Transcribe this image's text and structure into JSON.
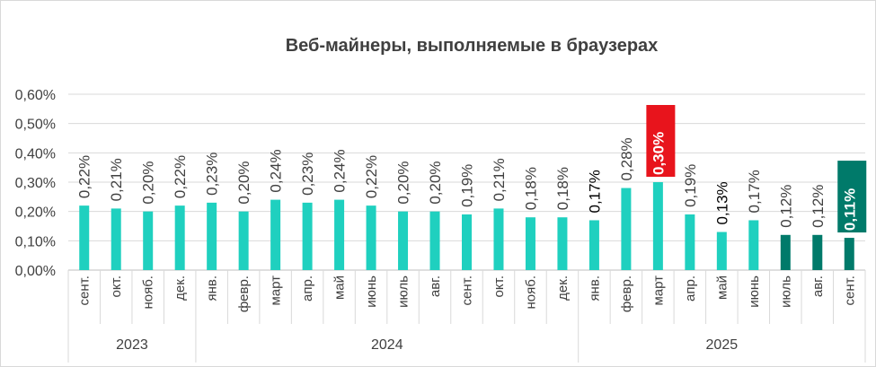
{
  "chart_data": {
    "type": "bar",
    "title": "Веб-майнеры, выполняемые в браузерах",
    "xlabel": "",
    "ylabel": "",
    "ylim": [
      0,
      0.6
    ],
    "yticks": [
      "0,00%",
      "0,10%",
      "0,20%",
      "0,30%",
      "0,40%",
      "0,50%",
      "0,60%"
    ],
    "grid": true,
    "legend": "none",
    "years": [
      {
        "label": "2023",
        "count": 4
      },
      {
        "label": "2024",
        "count": 12
      },
      {
        "label": "2025",
        "count": 9
      }
    ],
    "categories": [
      "сент.",
      "окт.",
      "нояб.",
      "дек.",
      "янв.",
      "февр.",
      "март",
      "апр.",
      "май",
      "июнь",
      "июль",
      "авг.",
      "сент.",
      "окт.",
      "нояб.",
      "дек.",
      "янв.",
      "февр.",
      "март",
      "апр.",
      "май",
      "июнь",
      "июль",
      "авг.",
      "сент."
    ],
    "values": [
      0.22,
      0.21,
      0.2,
      0.22,
      0.23,
      0.2,
      0.24,
      0.23,
      0.24,
      0.22,
      0.2,
      0.2,
      0.19,
      0.21,
      0.18,
      0.18,
      0.17,
      0.28,
      0.3,
      0.19,
      0.13,
      0.17,
      0.12,
      0.12,
      0.11
    ],
    "labels": [
      "0,22%",
      "0,21%",
      "0,20%",
      "0,22%",
      "0,23%",
      "0,20%",
      "0,24%",
      "0,23%",
      "0,24%",
      "0,22%",
      "0,20%",
      "0,20%",
      "0,19%",
      "0,21%",
      "0,18%",
      "0,18%",
      "0,17%",
      "0,28%",
      "0,30%",
      "0,19%",
      "0,13%",
      "0,17%",
      "0,12%",
      "0,12%",
      "0,11%"
    ],
    "bar_colors": [
      "#1fd0bf",
      "#1fd0bf",
      "#1fd0bf",
      "#1fd0bf",
      "#1fd0bf",
      "#1fd0bf",
      "#1fd0bf",
      "#1fd0bf",
      "#1fd0bf",
      "#1fd0bf",
      "#1fd0bf",
      "#1fd0bf",
      "#1fd0bf",
      "#1fd0bf",
      "#1fd0bf",
      "#1fd0bf",
      "#1fd0bf",
      "#1fd0bf",
      "#1fd0bf",
      "#1fd0bf",
      "#1fd0bf",
      "#1fd0bf",
      "#007a6a",
      "#007a6a",
      "#007a6a"
    ],
    "label_colors": [
      "#404040",
      "#404040",
      "#404040",
      "#404040",
      "#404040",
      "#404040",
      "#404040",
      "#404040",
      "#404040",
      "#404040",
      "#404040",
      "#404040",
      "#404040",
      "#404040",
      "#404040",
      "#404040",
      "#000000",
      "#404040",
      "#ffffff",
      "#404040",
      "#000000",
      "#404040",
      "#404040",
      "#404040",
      "#ffffff"
    ],
    "highlight": [
      {
        "index": 18,
        "background": "#e8141c"
      },
      {
        "index": 24,
        "background": "#007a6a"
      }
    ]
  }
}
